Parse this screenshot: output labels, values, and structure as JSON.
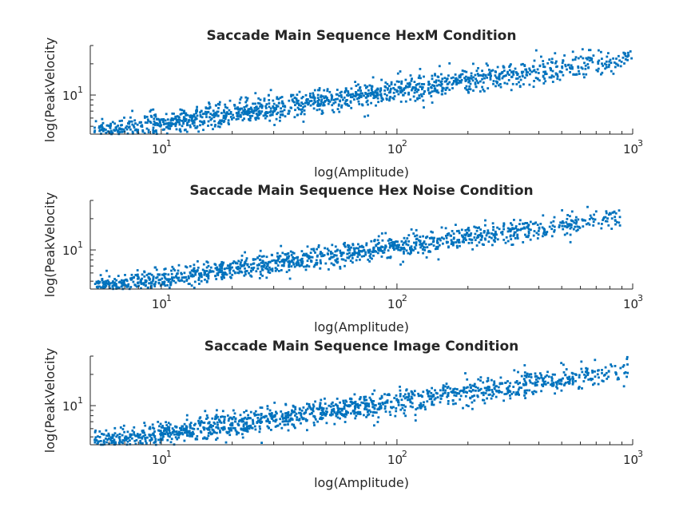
{
  "figure": {
    "background": "#ffffff",
    "series_color": "#0072bd",
    "axis_color": "#262626"
  },
  "chart_data": [
    {
      "type": "scatter",
      "title": "Saccade Main Sequence HexM Condition",
      "xlabel": "log(Amplitude)",
      "ylabel": "log(PeakVelocity",
      "x_scale": "log",
      "y_scale": "log",
      "xlim": [
        5,
        1000
      ],
      "ylim": [
        4.2,
        30
      ],
      "xticks": [
        {
          "base": "10",
          "exp": "1",
          "value": 10
        },
        {
          "base": "10",
          "exp": "2",
          "value": 100
        },
        {
          "base": "10",
          "exp": "3",
          "value": 1000
        }
      ],
      "yticks": [
        {
          "base": "10",
          "exp": "1",
          "value": 10
        }
      ],
      "trend": {
        "x_min": 5.2,
        "x_max": 990,
        "y_at_x_min": 4.3,
        "y_at_x_max": 23,
        "spread_log10": 0.06,
        "n_points": 1400
      },
      "outliers": [
        [
          48,
          6.6
        ],
        [
          73,
          6.2
        ],
        [
          130,
          7.6
        ],
        [
          210,
          13.8
        ],
        [
          380,
          12.0
        ]
      ]
    },
    {
      "type": "scatter",
      "title": "Saccade Main Sequence Hex Noise Condition",
      "xlabel": "log(Amplitude)",
      "ylabel": "log(PeakVelocity",
      "x_scale": "log",
      "y_scale": "log",
      "xlim": [
        5,
        1000
      ],
      "ylim": [
        4.2,
        30
      ],
      "xticks": [
        {
          "base": "10",
          "exp": "1",
          "value": 10
        },
        {
          "base": "10",
          "exp": "2",
          "value": 100
        },
        {
          "base": "10",
          "exp": "3",
          "value": 1000
        }
      ],
      "yticks": [
        {
          "base": "10",
          "exp": "1",
          "value": 10
        }
      ],
      "trend": {
        "x_min": 5.2,
        "x_max": 900,
        "y_at_x_min": 4.3,
        "y_at_x_max": 21,
        "spread_log10": 0.055,
        "n_points": 1300
      },
      "outliers": [
        [
          28,
          5.4
        ],
        [
          60,
          7.0
        ],
        [
          150,
          8.1
        ],
        [
          700,
          23.5
        ],
        [
          850,
          22.5
        ]
      ]
    },
    {
      "type": "scatter",
      "title": "Saccade Main Sequence Image Condition",
      "xlabel": "log(Amplitude)",
      "ylabel": "log(PeakVelocity",
      "x_scale": "log",
      "y_scale": "log",
      "xlim": [
        5,
        1000
      ],
      "ylim": [
        4.2,
        30
      ],
      "xticks": [
        {
          "base": "10",
          "exp": "1",
          "value": 10
        },
        {
          "base": "10",
          "exp": "2",
          "value": 100
        },
        {
          "base": "10",
          "exp": "3",
          "value": 1000
        }
      ],
      "yticks": [
        {
          "base": "10",
          "exp": "1",
          "value": 10
        }
      ],
      "trend": {
        "x_min": 5.2,
        "x_max": 990,
        "y_at_x_min": 4.3,
        "y_at_x_max": 22.5,
        "spread_log10": 0.06,
        "n_points": 1400
      },
      "outliers": [
        [
          50,
          8.8
        ],
        [
          72,
          10.6
        ],
        [
          165,
          15.2
        ],
        [
          195,
          20.5
        ],
        [
          120,
          7.2
        ],
        [
          640,
          21.8
        ]
      ]
    }
  ]
}
